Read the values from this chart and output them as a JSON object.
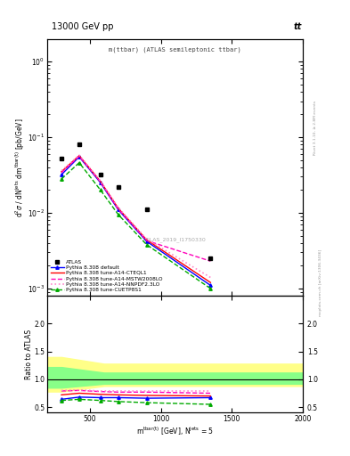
{
  "title_top": "13000 GeV pp",
  "title_top_right": "tt",
  "plot_label": "m(ttbar) (ATLAS semileptonic ttbar)",
  "watermark": "ATLAS_2019_I1750330",
  "right_label_top": "Rivet 3.1.10, ≥ 2.8M events",
  "right_label_bottom": "mcplots.cern.ch [arXiv:1306.3436]",
  "xlabel": "m$^{\\mathregular{tbar(t)}}$ [GeV], N$^{\\mathregular{jets}}$ = 5",
  "ylabel_main": "d$^2\\sigma$ / dN$^{\\mathregular{jets}}$ dm$^{\\mathregular{tbar(t)}}$ [pb/GeV]",
  "ylabel_ratio": "Ratio to ATLAS",
  "xlim": [
    200,
    2000
  ],
  "ylim_main": [
    0.0008,
    2.0
  ],
  "ylim_ratio": [
    0.4,
    2.5
  ],
  "atlas_x": [
    300,
    425,
    575,
    700,
    900,
    1350
  ],
  "atlas_y": [
    0.052,
    0.08,
    0.032,
    0.022,
    0.011,
    0.0025
  ],
  "default_x": [
    300,
    425,
    575,
    700,
    900,
    1350
  ],
  "default_y": [
    0.032,
    0.055,
    0.025,
    0.011,
    0.0042,
    0.0011
  ],
  "default_color": "#0000ff",
  "default_label": "Pythia 8.308 default",
  "cteq_x": [
    300,
    425,
    575,
    700,
    900,
    1350
  ],
  "cteq_y": [
    0.035,
    0.057,
    0.026,
    0.0115,
    0.0044,
    0.0012
  ],
  "cteq_color": "#ff0000",
  "cteq_label": "Pythia 8.308 tune-A14-CTEQL1",
  "mstw_x": [
    300,
    425,
    575,
    700,
    900,
    1350
  ],
  "mstw_y": [
    0.034,
    0.056,
    0.0255,
    0.0112,
    0.0043,
    0.0023
  ],
  "mstw_color": "#ff00bb",
  "mstw_label": "Pythia 8.308 tune-A14-MSTW2008LO",
  "nnpdf_x": [
    300,
    425,
    575,
    700,
    900,
    1350
  ],
  "nnpdf_y": [
    0.036,
    0.058,
    0.0265,
    0.0118,
    0.0045,
    0.0014
  ],
  "nnpdf_color": "#ff88cc",
  "nnpdf_label": "Pythia 8.308 tune-A14-NNPDF2.3LO",
  "cuetp_x": [
    300,
    425,
    575,
    700,
    900,
    1350
  ],
  "cuetp_y": [
    0.028,
    0.046,
    0.02,
    0.0095,
    0.0038,
    0.001
  ],
  "cuetp_color": "#00aa00",
  "cuetp_label": "Pythia 8.308 tune-CUETP8S1",
  "ratio_x": [
    300,
    425,
    575,
    700,
    900,
    1350
  ],
  "ratio_default_y": [
    0.64,
    0.68,
    0.67,
    0.67,
    0.66,
    0.67
  ],
  "ratio_cteq_y": [
    0.72,
    0.75,
    0.73,
    0.72,
    0.71,
    0.7
  ],
  "ratio_mstw_y": [
    0.79,
    0.8,
    0.78,
    0.77,
    0.77,
    0.75
  ],
  "ratio_nnpdf_y": [
    0.8,
    0.81,
    0.79,
    0.79,
    0.79,
    0.79
  ],
  "ratio_cuetp_y": [
    0.62,
    0.64,
    0.62,
    0.6,
    0.58,
    0.55
  ],
  "band_x": [
    200,
    300,
    600,
    1500,
    2000
  ],
  "band_yellow_low": [
    0.78,
    0.78,
    0.88,
    0.88,
    0.88
  ],
  "band_yellow_high": [
    1.4,
    1.4,
    1.28,
    1.28,
    1.28
  ],
  "band_green_low": [
    0.85,
    0.85,
    0.92,
    0.92,
    0.92
  ],
  "band_green_high": [
    1.22,
    1.22,
    1.12,
    1.12,
    1.12
  ]
}
